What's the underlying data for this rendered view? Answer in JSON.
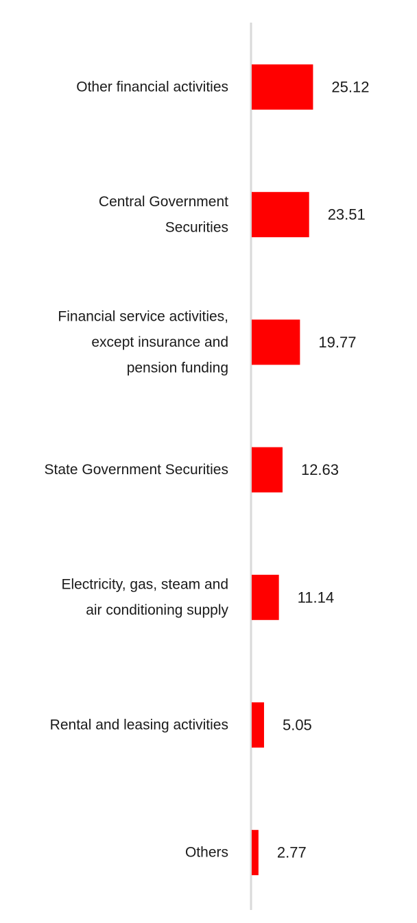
{
  "chart_data": {
    "type": "bar",
    "orientation": "horizontal",
    "categories": [
      [
        "Other financial activities"
      ],
      [
        "Central Government",
        "Securities"
      ],
      [
        "Financial service activities,",
        "except insurance and",
        "pension funding"
      ],
      [
        "State Government Securities"
      ],
      [
        "Electricity, gas, steam and",
        "air conditioning supply"
      ],
      [
        "Rental and leasing activities"
      ],
      [
        "Others"
      ]
    ],
    "values": [
      25.12,
      23.51,
      19.77,
      12.63,
      11.14,
      5.05,
      2.77
    ],
    "value_labels": [
      "25.12",
      "23.51",
      "19.77",
      "12.63",
      "11.14",
      "5.05",
      "2.77"
    ],
    "title": "",
    "xlabel": "",
    "ylabel": "",
    "xlim": [
      0,
      30
    ],
    "grid": false,
    "legend": "none",
    "bar_color": "#ff0000",
    "axis_color": "#d9d9d9"
  }
}
